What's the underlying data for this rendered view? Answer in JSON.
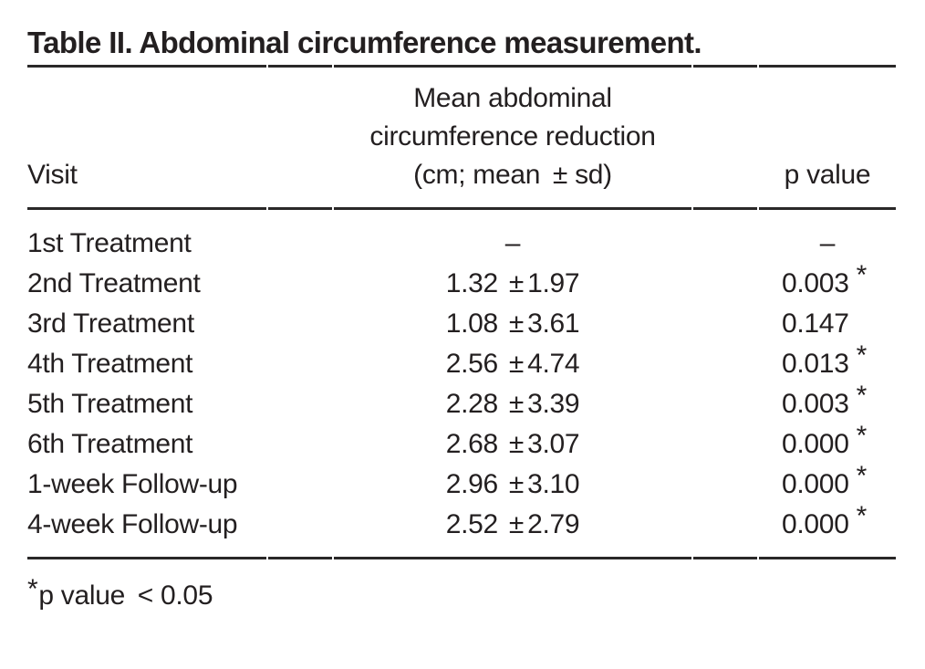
{
  "title": "Table II. Abdominal circumference measurement.",
  "table": {
    "header": {
      "visit": "Visit",
      "mean_lines": [
        "Mean abdominal",
        "circumference reduction",
        "(cm; mean  ± sd)"
      ],
      "p_value": "p value"
    },
    "rows": [
      {
        "visit": "1st Treatment",
        "mean": "–",
        "p": "–"
      },
      {
        "visit": "2nd Treatment",
        "mean": "1.32",
        "pm": "±",
        "sd": "1.97",
        "p": "0.003",
        "sig": "*"
      },
      {
        "visit": "3rd Treatment",
        "mean": "1.08",
        "pm": "±",
        "sd": "3.61",
        "p": "0.147"
      },
      {
        "visit": "4th Treatment",
        "mean": "2.56",
        "pm": "±",
        "sd": "4.74",
        "p": "0.013",
        "sig": "*"
      },
      {
        "visit": "5th Treatment",
        "mean": "2.28",
        "pm": "±",
        "sd": "3.39",
        "p": "0.003",
        "sig": "*"
      },
      {
        "visit": "6th Treatment",
        "mean": "2.68",
        "pm": "±",
        "sd": "3.07",
        "p": "0.000",
        "sig": "*"
      },
      {
        "visit": "1-week Follow-up",
        "mean": "2.96",
        "pm": "±",
        "sd": "3.10",
        "p": "0.000",
        "sig": "*"
      },
      {
        "visit": "4-week Follow-up",
        "mean": "2.52",
        "pm": "±",
        "sd": "2.79",
        "p": "0.000",
        "sig": "*"
      }
    ],
    "footnote": {
      "marker": "*",
      "text": "p value  < 0.05"
    }
  },
  "colors": {
    "text": "#231f20",
    "rule": "#2a2828",
    "background": "#ffffff"
  }
}
